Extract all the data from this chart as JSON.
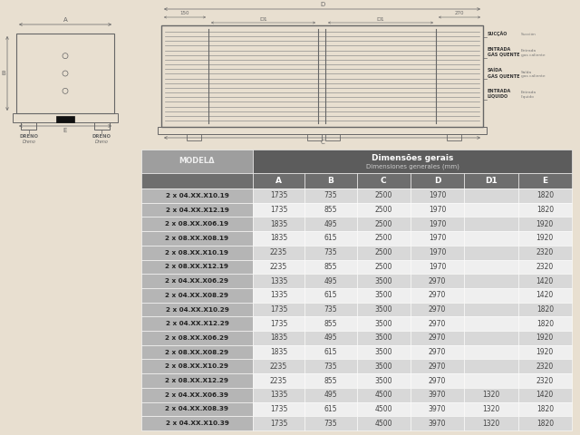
{
  "bg_color": "#e8dfd0",
  "table_header_bg": "#5c5c5c",
  "table_col_header_bg": "#6e6e6e",
  "table_model_bg": "#9e9e9e",
  "table_row_bg_odd": "#d8d8d8",
  "table_row_bg_even": "#efefef",
  "table_header_text": "#ffffff",
  "table_data_text": "#444444",
  "header_title": "Dimensões gerais",
  "header_subtitle": "Dimensiones generales (mm)",
  "col_headers": [
    "A",
    "B",
    "C",
    "D",
    "D1",
    "E"
  ],
  "model_header": "MODELΔ",
  "rows": [
    [
      "2 x 04.XX.X10.19",
      "1735",
      "735",
      "2500",
      "1970",
      "",
      "1820"
    ],
    [
      "2 x 04.XX.X12.19",
      "1735",
      "855",
      "2500",
      "1970",
      "",
      "1820"
    ],
    [
      "2 x 08.XX.X06.19",
      "1835",
      "495",
      "2500",
      "1970",
      "",
      "1920"
    ],
    [
      "2 x 08.XX.X08.19",
      "1835",
      "615",
      "2500",
      "1970",
      "",
      "1920"
    ],
    [
      "2 x 08.XX.X10.19",
      "2235",
      "735",
      "2500",
      "1970",
      "",
      "2320"
    ],
    [
      "2 x 08.XX.X12.19",
      "2235",
      "855",
      "2500",
      "1970",
      "",
      "2320"
    ],
    [
      "2 x 04.XX.X06.29",
      "1335",
      "495",
      "3500",
      "2970",
      "",
      "1420"
    ],
    [
      "2 x 04.XX.X08.29",
      "1335",
      "615",
      "3500",
      "2970",
      "",
      "1420"
    ],
    [
      "2 x 04.XX.X10.29",
      "1735",
      "735",
      "3500",
      "2970",
      "",
      "1820"
    ],
    [
      "2 x 04.XX.X12.29",
      "1735",
      "855",
      "3500",
      "2970",
      "",
      "1820"
    ],
    [
      "2 x 08.XX.X06.29",
      "1835",
      "495",
      "3500",
      "2970",
      "",
      "1920"
    ],
    [
      "2 x 08.XX.X08.29",
      "1835",
      "615",
      "3500",
      "2970",
      "",
      "1920"
    ],
    [
      "2 x 08.XX.X10.29",
      "2235",
      "735",
      "3500",
      "2970",
      "",
      "2320"
    ],
    [
      "2 x 08.XX.X12.29",
      "2235",
      "855",
      "3500",
      "2970",
      "",
      "2320"
    ],
    [
      "2 x 04.XX.X06.39",
      "1335",
      "495",
      "4500",
      "3970",
      "1320",
      "1420"
    ],
    [
      "2 x 04.XX.X08.39",
      "1735",
      "615",
      "4500",
      "3970",
      "1320",
      "1820"
    ],
    [
      "2 x 04.XX.X10.39",
      "1735",
      "735",
      "4500",
      "3970",
      "1320",
      "1820"
    ]
  ]
}
